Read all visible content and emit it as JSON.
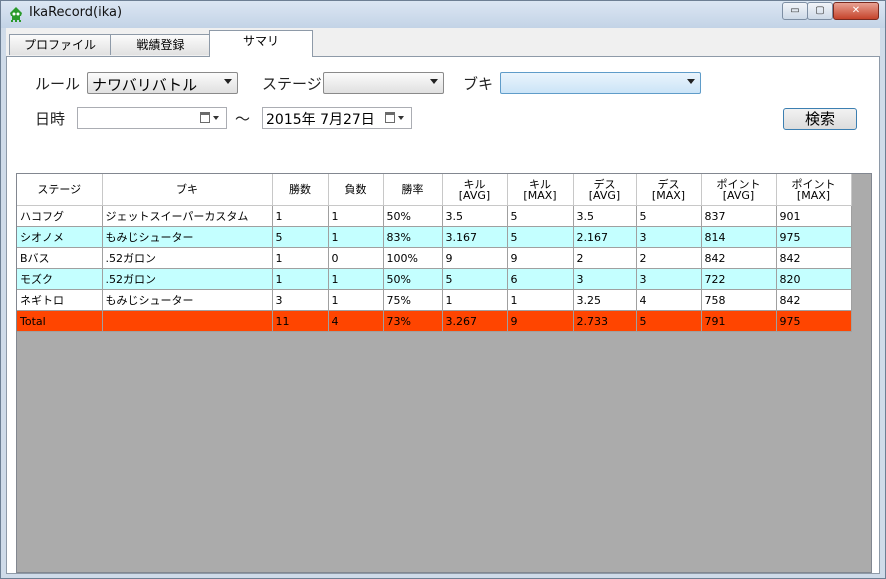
{
  "window": {
    "title": "IkaRecord(ika)",
    "minimize_glyph": "▭",
    "maximize_glyph": "▢",
    "close_glyph": "✕",
    "app_icon": "ika-squid-icon"
  },
  "tabs": [
    {
      "label": "プロファイル"
    },
    {
      "label": "戦績登録"
    },
    {
      "label": "サマリ"
    }
  ],
  "active_tab": 2,
  "filters": {
    "rule_label": "ルール",
    "rule_value": "ナワバリバトル",
    "stage_label": "ステージ",
    "stage_value": "",
    "weapon_label": "ブキ",
    "weapon_value": "",
    "datetime_label": "日時",
    "date_from": "",
    "range_sep": "～",
    "date_to": "2015年  7月27日",
    "search_label": "検索"
  },
  "grid": {
    "columns": [
      {
        "label": "ステージ"
      },
      {
        "label": "ブキ"
      },
      {
        "label": "勝数"
      },
      {
        "label": "負数"
      },
      {
        "label": "勝率"
      },
      {
        "label": "キル",
        "sub": "[AVG]"
      },
      {
        "label": "キル",
        "sub": "[MAX]"
      },
      {
        "label": "デス",
        "sub": "[AVG]"
      },
      {
        "label": "デス",
        "sub": "[MAX]"
      },
      {
        "label": "ポイント",
        "sub": "[AVG]"
      },
      {
        "label": "ポイント",
        "sub": "[MAX]"
      }
    ],
    "rows": [
      [
        "ハコフグ",
        "ジェットスイーパーカスタム",
        "1",
        "1",
        "50%",
        "3.5",
        "5",
        "3.5",
        "5",
        "837",
        "901"
      ],
      [
        "シオノメ",
        "もみじシューター",
        "5",
        "1",
        "83%",
        "3.167",
        "5",
        "2.167",
        "3",
        "814",
        "975"
      ],
      [
        "Bバス",
        ".52ガロン",
        "1",
        "0",
        "100%",
        "9",
        "9",
        "2",
        "2",
        "842",
        "842"
      ],
      [
        "モズク",
        ".52ガロン",
        "1",
        "1",
        "50%",
        "5",
        "6",
        "3",
        "3",
        "722",
        "820"
      ],
      [
        "ネギトロ",
        "もみじシューター",
        "3",
        "1",
        "75%",
        "1",
        "1",
        "3.25",
        "4",
        "758",
        "842"
      ]
    ],
    "total": [
      "Total",
      "",
      "11",
      "4",
      "73%",
      "3.267",
      "9",
      "2.733",
      "5",
      "791",
      "975"
    ],
    "colors": {
      "row_even": "#ffffff",
      "row_odd": "#c4ffff",
      "total": "#ff4500",
      "empty_area": "#ababab"
    }
  }
}
